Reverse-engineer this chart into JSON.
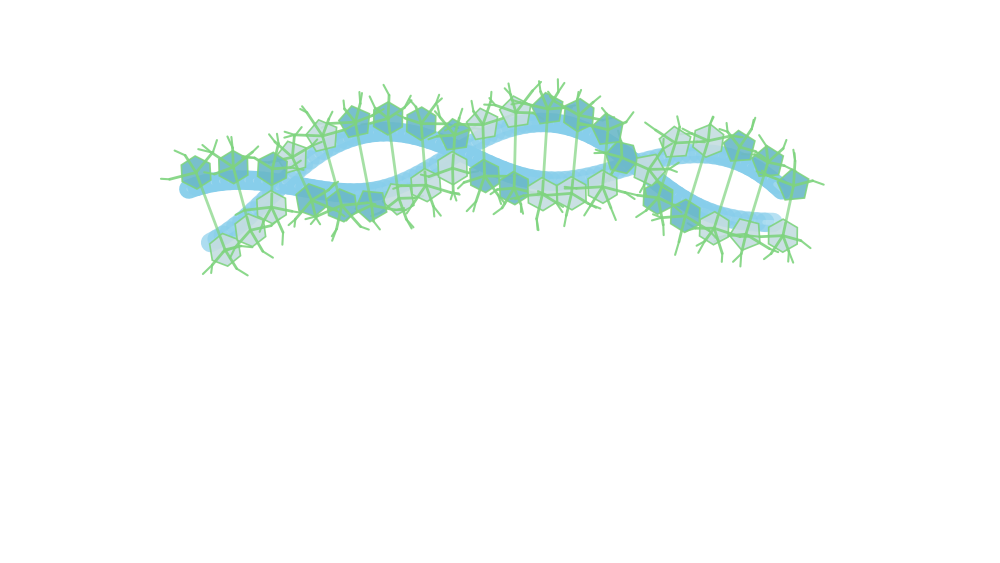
{
  "background_color": "#ffffff",
  "helix_color": "#87CEEB",
  "helix_highlight": "#b8e4f5",
  "base_stick_color": "#7FD47F",
  "base_poly_color": "#6BB8C8",
  "base_poly_color2": "#c5dde0",
  "figsize": [
    10.0,
    5.63
  ],
  "dpi": 100,
  "n_points": 500,
  "n_bases": 20,
  "strand_lw": 14,
  "strand_lw2": 10,
  "base_stick_lw": 2.0,
  "base_stick_lw2": 1.5
}
